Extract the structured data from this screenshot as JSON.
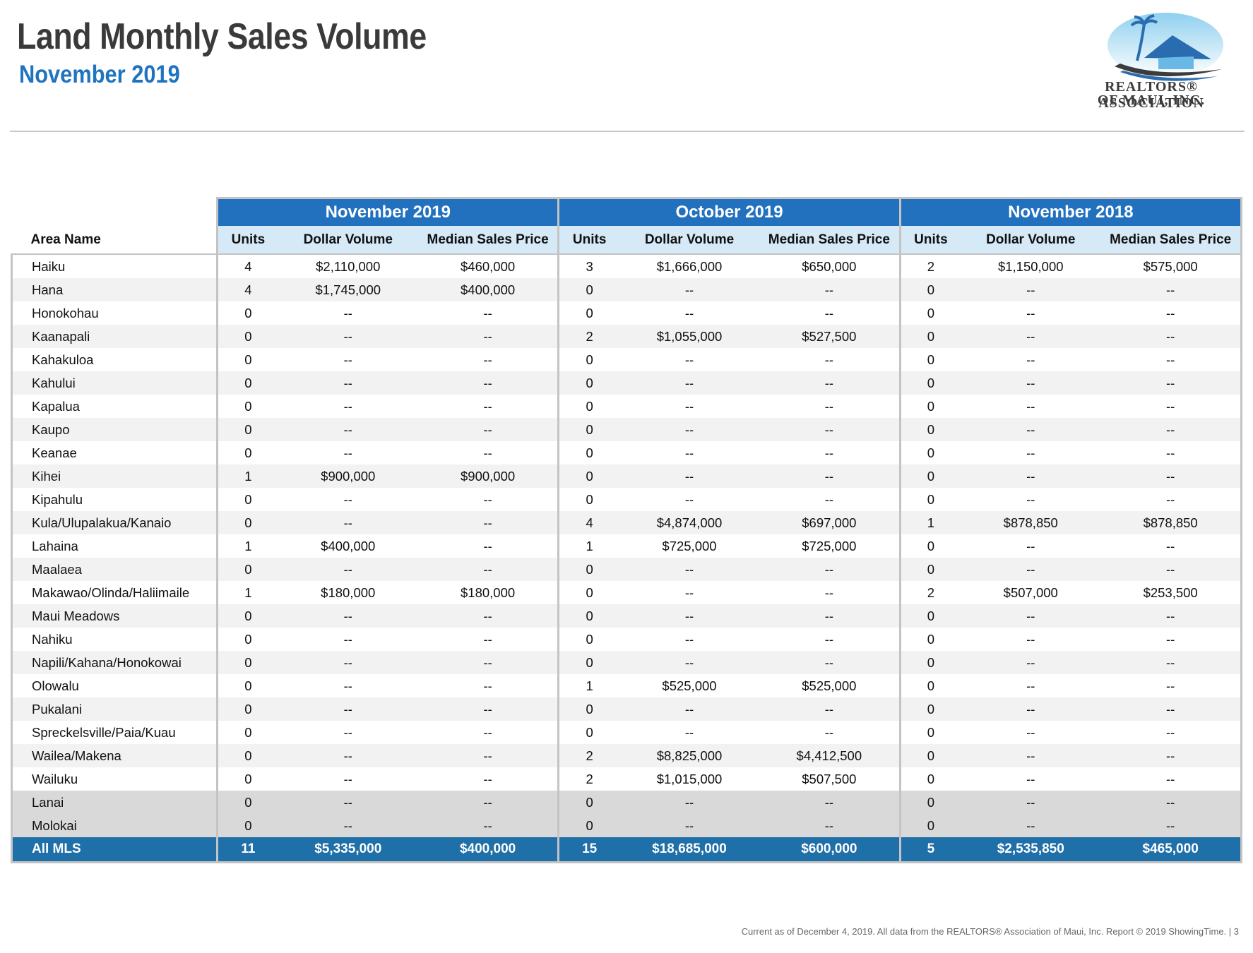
{
  "header": {
    "title": "Land Monthly Sales Volume",
    "subtitle": "November 2019",
    "logo_line1": "REALTORS® ASSOCIATION",
    "logo_line2": "OF MAUI, INC."
  },
  "table": {
    "area_header": "Area Name",
    "groups": [
      "November 2019",
      "October 2019",
      "November 2018"
    ],
    "sub_headers": [
      "Units",
      "Dollar Volume",
      "Median Sales Price"
    ],
    "rows": [
      {
        "area": "Haiku",
        "cells": [
          "4",
          "$2,110,000",
          "$460,000",
          "3",
          "$1,666,000",
          "$650,000",
          "2",
          "$1,150,000",
          "$575,000"
        ]
      },
      {
        "area": "Hana",
        "cells": [
          "4",
          "$1,745,000",
          "$400,000",
          "0",
          "--",
          "--",
          "0",
          "--",
          "--"
        ]
      },
      {
        "area": "Honokohau",
        "cells": [
          "0",
          "--",
          "--",
          "0",
          "--",
          "--",
          "0",
          "--",
          "--"
        ]
      },
      {
        "area": "Kaanapali",
        "cells": [
          "0",
          "--",
          "--",
          "2",
          "$1,055,000",
          "$527,500",
          "0",
          "--",
          "--"
        ]
      },
      {
        "area": "Kahakuloa",
        "cells": [
          "0",
          "--",
          "--",
          "0",
          "--",
          "--",
          "0",
          "--",
          "--"
        ]
      },
      {
        "area": "Kahului",
        "cells": [
          "0",
          "--",
          "--",
          "0",
          "--",
          "--",
          "0",
          "--",
          "--"
        ]
      },
      {
        "area": "Kapalua",
        "cells": [
          "0",
          "--",
          "--",
          "0",
          "--",
          "--",
          "0",
          "--",
          "--"
        ]
      },
      {
        "area": "Kaupo",
        "cells": [
          "0",
          "--",
          "--",
          "0",
          "--",
          "--",
          "0",
          "--",
          "--"
        ]
      },
      {
        "area": "Keanae",
        "cells": [
          "0",
          "--",
          "--",
          "0",
          "--",
          "--",
          "0",
          "--",
          "--"
        ]
      },
      {
        "area": "Kihei",
        "cells": [
          "1",
          "$900,000",
          "$900,000",
          "0",
          "--",
          "--",
          "0",
          "--",
          "--"
        ]
      },
      {
        "area": "Kipahulu",
        "cells": [
          "0",
          "--",
          "--",
          "0",
          "--",
          "--",
          "0",
          "--",
          "--"
        ]
      },
      {
        "area": "Kula/Ulupalakua/Kanaio",
        "cells": [
          "0",
          "--",
          "--",
          "4",
          "$4,874,000",
          "$697,000",
          "1",
          "$878,850",
          "$878,850"
        ]
      },
      {
        "area": "Lahaina",
        "cells": [
          "1",
          "$400,000",
          "--",
          "1",
          "$725,000",
          "$725,000",
          "0",
          "--",
          "--"
        ]
      },
      {
        "area": "Maalaea",
        "cells": [
          "0",
          "--",
          "--",
          "0",
          "--",
          "--",
          "0",
          "--",
          "--"
        ]
      },
      {
        "area": "Makawao/Olinda/Haliimaile",
        "cells": [
          "1",
          "$180,000",
          "$180,000",
          "0",
          "--",
          "--",
          "2",
          "$507,000",
          "$253,500"
        ]
      },
      {
        "area": "Maui Meadows",
        "cells": [
          "0",
          "--",
          "--",
          "0",
          "--",
          "--",
          "0",
          "--",
          "--"
        ]
      },
      {
        "area": "Nahiku",
        "cells": [
          "0",
          "--",
          "--",
          "0",
          "--",
          "--",
          "0",
          "--",
          "--"
        ]
      },
      {
        "area": "Napili/Kahana/Honokowai",
        "cells": [
          "0",
          "--",
          "--",
          "0",
          "--",
          "--",
          "0",
          "--",
          "--"
        ]
      },
      {
        "area": "Olowalu",
        "cells": [
          "0",
          "--",
          "--",
          "1",
          "$525,000",
          "$525,000",
          "0",
          "--",
          "--"
        ]
      },
      {
        "area": "Pukalani",
        "cells": [
          "0",
          "--",
          "--",
          "0",
          "--",
          "--",
          "0",
          "--",
          "--"
        ]
      },
      {
        "area": "Spreckelsville/Paia/Kuau",
        "cells": [
          "0",
          "--",
          "--",
          "0",
          "--",
          "--",
          "0",
          "--",
          "--"
        ]
      },
      {
        "area": "Wailea/Makena",
        "cells": [
          "0",
          "--",
          "--",
          "2",
          "$8,825,000",
          "$4,412,500",
          "0",
          "--",
          "--"
        ]
      },
      {
        "area": "Wailuku",
        "cells": [
          "0",
          "--",
          "--",
          "2",
          "$1,015,000",
          "$507,500",
          "0",
          "--",
          "--"
        ]
      },
      {
        "area": "Lanai",
        "cells": [
          "0",
          "--",
          "--",
          "0",
          "--",
          "--",
          "0",
          "--",
          "--"
        ],
        "island": true
      },
      {
        "area": "Molokai",
        "cells": [
          "0",
          "--",
          "--",
          "0",
          "--",
          "--",
          "0",
          "--",
          "--"
        ],
        "island": true
      }
    ],
    "total": {
      "area": "All MLS",
      "cells": [
        "11",
        "$5,335,000",
        "$400,000",
        "15",
        "$18,685,000",
        "$600,000",
        "5",
        "$2,535,850",
        "$465,000"
      ]
    }
  },
  "footer": {
    "text": "Current as of December 4, 2019. All data from the REALTORS® Association of Maui, Inc. Report © 2019 ShowingTime.  |  3"
  },
  "colors": {
    "title": "#3a3a3a",
    "subtitle": "#1f74c0",
    "group_header": "#2271bf",
    "sub_header": "#d6e9f7",
    "total_row": "#1f6fa8",
    "island_row": "#d9d9d9"
  }
}
